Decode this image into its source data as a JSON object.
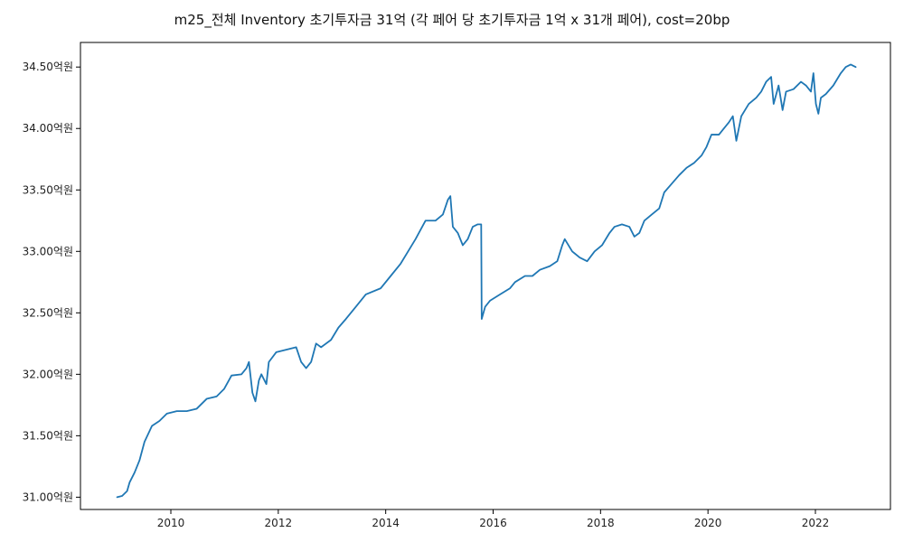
{
  "chart_data": {
    "type": "line",
    "title": "m25_전체 Inventory 초기투자금 31억 (각 페어 당 초기투자금 1억 x 31개 페어), cost=20bp",
    "xlabel": "",
    "ylabel": "",
    "grid": false,
    "legend": "none",
    "xlim": [
      2008.5,
      2023.5
    ],
    "ylim": [
      30.9,
      34.7
    ],
    "x_ticks": [
      {
        "value": 2010,
        "label": "2010"
      },
      {
        "value": 2012,
        "label": "2012"
      },
      {
        "value": 2014,
        "label": "2014"
      },
      {
        "value": 2016,
        "label": "2016"
      },
      {
        "value": 2018,
        "label": "2018"
      },
      {
        "value": 2020,
        "label": "2020"
      },
      {
        "value": 2022,
        "label": "2022"
      }
    ],
    "y_ticks": [
      {
        "value": 31.0,
        "label": "31.00억원"
      },
      {
        "value": 31.5,
        "label": "31.50억원"
      },
      {
        "value": 32.0,
        "label": "32.00억원"
      },
      {
        "value": 32.5,
        "label": "32.50억원"
      },
      {
        "value": 33.0,
        "label": "33.00억원"
      },
      {
        "value": 33.5,
        "label": "33.50억원"
      },
      {
        "value": 34.0,
        "label": "34.00억원"
      },
      {
        "value": 34.5,
        "label": "34.50억원"
      }
    ],
    "series": [
      {
        "color": "#1f77b4",
        "points": [
          [
            2009.0,
            31.0
          ],
          [
            2009.1,
            31.01
          ],
          [
            2009.2,
            31.05
          ],
          [
            2009.25,
            31.12
          ],
          [
            2009.35,
            31.2
          ],
          [
            2009.45,
            31.3
          ],
          [
            2009.55,
            31.45
          ],
          [
            2009.7,
            31.58
          ],
          [
            2009.85,
            31.62
          ],
          [
            2010.0,
            31.68
          ],
          [
            2010.2,
            31.7
          ],
          [
            2010.4,
            31.7
          ],
          [
            2010.6,
            31.72
          ],
          [
            2010.8,
            31.8
          ],
          [
            2011.0,
            31.82
          ],
          [
            2011.15,
            31.88
          ],
          [
            2011.3,
            31.99
          ],
          [
            2011.5,
            32.0
          ],
          [
            2011.6,
            32.05
          ],
          [
            2011.65,
            32.1
          ],
          [
            2011.72,
            31.85
          ],
          [
            2011.78,
            31.78
          ],
          [
            2011.85,
            31.95
          ],
          [
            2011.9,
            32.0
          ],
          [
            2012.0,
            31.92
          ],
          [
            2012.05,
            32.1
          ],
          [
            2012.2,
            32.18
          ],
          [
            2012.4,
            32.2
          ],
          [
            2012.6,
            32.22
          ],
          [
            2012.7,
            32.1
          ],
          [
            2012.8,
            32.05
          ],
          [
            2012.9,
            32.1
          ],
          [
            2013.0,
            32.25
          ],
          [
            2013.1,
            32.22
          ],
          [
            2013.3,
            32.28
          ],
          [
            2013.45,
            32.38
          ],
          [
            2013.6,
            32.45
          ],
          [
            2013.8,
            32.55
          ],
          [
            2014.0,
            32.65
          ],
          [
            2014.3,
            32.7
          ],
          [
            2014.5,
            32.8
          ],
          [
            2014.7,
            32.9
          ],
          [
            2014.85,
            33.0
          ],
          [
            2015.0,
            33.1
          ],
          [
            2015.2,
            33.25
          ],
          [
            2015.4,
            33.25
          ],
          [
            2015.55,
            33.3
          ],
          [
            2015.65,
            33.42
          ],
          [
            2015.7,
            33.45
          ],
          [
            2015.75,
            33.2
          ],
          [
            2015.85,
            33.15
          ],
          [
            2015.95,
            33.05
          ],
          [
            2016.05,
            33.1
          ],
          [
            2016.15,
            33.2
          ],
          [
            2016.25,
            33.22
          ],
          [
            2016.32,
            33.22
          ],
          [
            2016.33,
            32.45
          ],
          [
            2016.4,
            32.55
          ],
          [
            2016.5,
            32.6
          ],
          [
            2016.7,
            32.65
          ],
          [
            2016.9,
            32.7
          ],
          [
            2017.0,
            32.75
          ],
          [
            2017.2,
            32.8
          ],
          [
            2017.35,
            32.8
          ],
          [
            2017.5,
            32.85
          ],
          [
            2017.7,
            32.88
          ],
          [
            2017.85,
            32.92
          ],
          [
            2017.95,
            33.05
          ],
          [
            2018.0,
            33.1
          ],
          [
            2018.15,
            33.0
          ],
          [
            2018.3,
            32.95
          ],
          [
            2018.45,
            32.92
          ],
          [
            2018.6,
            33.0
          ],
          [
            2018.75,
            33.05
          ],
          [
            2018.9,
            33.15
          ],
          [
            2019.0,
            33.2
          ],
          [
            2019.15,
            33.22
          ],
          [
            2019.3,
            33.2
          ],
          [
            2019.4,
            33.12
          ],
          [
            2019.5,
            33.15
          ],
          [
            2019.6,
            33.25
          ],
          [
            2019.75,
            33.3
          ],
          [
            2019.9,
            33.35
          ],
          [
            2020.0,
            33.48
          ],
          [
            2020.15,
            33.55
          ],
          [
            2020.3,
            33.62
          ],
          [
            2020.45,
            33.68
          ],
          [
            2020.6,
            33.72
          ],
          [
            2020.75,
            33.78
          ],
          [
            2020.85,
            33.85
          ],
          [
            2020.95,
            33.95
          ],
          [
            2021.1,
            33.95
          ],
          [
            2021.2,
            34.0
          ],
          [
            2021.3,
            34.05
          ],
          [
            2021.38,
            34.1
          ],
          [
            2021.45,
            33.9
          ],
          [
            2021.55,
            34.1
          ],
          [
            2021.7,
            34.2
          ],
          [
            2021.85,
            34.25
          ],
          [
            2021.95,
            34.3
          ],
          [
            2022.05,
            34.38
          ],
          [
            2022.15,
            34.42
          ],
          [
            2022.2,
            34.2
          ],
          [
            2022.3,
            34.35
          ],
          [
            2022.38,
            34.15
          ],
          [
            2022.45,
            34.3
          ],
          [
            2022.6,
            34.32
          ],
          [
            2022.75,
            34.38
          ],
          [
            2022.85,
            34.35
          ],
          [
            2022.95,
            34.3
          ],
          [
            2023.0,
            34.45
          ],
          [
            2023.05,
            34.2
          ],
          [
            2023.1,
            34.12
          ],
          [
            2023.15,
            34.25
          ],
          [
            2023.25,
            34.28
          ],
          [
            2023.4,
            34.35
          ],
          [
            2023.55,
            34.45
          ],
          [
            2023.65,
            34.5
          ],
          [
            2023.75,
            34.52
          ],
          [
            2023.85,
            34.5
          ]
        ]
      }
    ]
  }
}
